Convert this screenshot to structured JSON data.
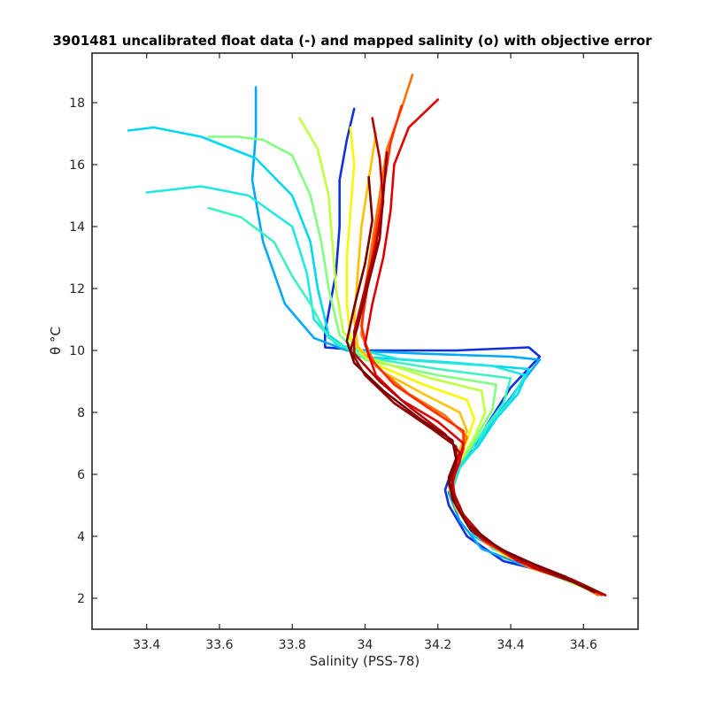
{
  "chart_data": {
    "type": "line",
    "title": "3901481 uncalibrated float data (-) and mapped salinity (o) with objective error",
    "xlabel": "Salinity (PSS-78)",
    "ylabel": "θ °C",
    "xlim": [
      33.25,
      34.75
    ],
    "ylim": [
      1.0,
      19.6
    ],
    "xticks": [
      33.4,
      33.6,
      33.8,
      34.0,
      34.2,
      34.4,
      34.6
    ],
    "xtick_labels": [
      "33.4",
      "33.6",
      "33.8",
      "34",
      "34.2",
      "34.4",
      "34.6"
    ],
    "yticks": [
      2,
      4,
      6,
      8,
      10,
      12,
      14,
      16,
      18
    ],
    "ytick_labels": [
      "2",
      "4",
      "6",
      "8",
      "10",
      "12",
      "14",
      "16",
      "18"
    ],
    "grid": false,
    "colormap": "jet (profile index: early = blue, late = dark red)",
    "colors": [
      "#0000b4",
      "#0050ff",
      "#00b4ff",
      "#30ffe0",
      "#90ff70",
      "#f0ff10",
      "#ffb000",
      "#ff4000",
      "#c00000",
      "#800000"
    ],
    "series": [
      {
        "color": "#1030e0",
        "points": [
          [
            33.97,
            17.8
          ],
          [
            33.95,
            16.8
          ],
          [
            33.93,
            15.5
          ],
          [
            33.93,
            14.0
          ],
          [
            33.92,
            12.5
          ],
          [
            33.89,
            10.6
          ],
          [
            33.89,
            10.1
          ],
          [
            34.0,
            10.0
          ],
          [
            34.25,
            10.0
          ],
          [
            34.45,
            10.1
          ],
          [
            34.48,
            9.8
          ],
          [
            34.4,
            8.8
          ],
          [
            34.33,
            7.5
          ],
          [
            34.3,
            6.8
          ],
          [
            34.24,
            6.2
          ],
          [
            34.22,
            5.5
          ],
          [
            34.23,
            5.0
          ],
          [
            34.28,
            4.0
          ],
          [
            34.38,
            3.2
          ],
          [
            34.55,
            2.7
          ],
          [
            34.62,
            2.3
          ]
        ]
      },
      {
        "color": "#00a8ff",
        "points": [
          [
            33.7,
            18.5
          ],
          [
            33.7,
            17.0
          ],
          [
            33.69,
            15.5
          ],
          [
            33.72,
            13.5
          ],
          [
            33.78,
            11.5
          ],
          [
            33.86,
            10.4
          ],
          [
            33.95,
            10.0
          ],
          [
            34.15,
            9.9
          ],
          [
            34.4,
            9.8
          ],
          [
            34.48,
            9.7
          ],
          [
            34.42,
            8.8
          ],
          [
            34.35,
            7.7
          ],
          [
            34.3,
            6.8
          ],
          [
            34.25,
            6.2
          ],
          [
            34.23,
            5.4
          ],
          [
            34.26,
            4.5
          ],
          [
            34.32,
            3.6
          ],
          [
            34.45,
            3.0
          ],
          [
            34.58,
            2.5
          ],
          [
            34.64,
            2.1
          ]
        ]
      },
      {
        "color": "#00d8f0",
        "points": [
          [
            33.35,
            17.1
          ],
          [
            33.42,
            17.2
          ],
          [
            33.55,
            16.9
          ],
          [
            33.7,
            16.2
          ],
          [
            33.8,
            15.0
          ],
          [
            33.85,
            13.5
          ],
          [
            33.87,
            12.0
          ],
          [
            33.9,
            10.5
          ],
          [
            33.98,
            9.8
          ],
          [
            34.25,
            9.6
          ],
          [
            34.45,
            9.4
          ],
          [
            34.42,
            8.6
          ],
          [
            34.36,
            7.8
          ],
          [
            34.31,
            6.9
          ],
          [
            34.26,
            6.3
          ],
          [
            34.24,
            5.6
          ],
          [
            34.26,
            4.8
          ],
          [
            34.3,
            4.0
          ],
          [
            34.42,
            3.2
          ],
          [
            34.56,
            2.6
          ],
          [
            34.63,
            2.2
          ]
        ]
      },
      {
        "color": "#20e8e0",
        "points": [
          [
            33.4,
            15.1
          ],
          [
            33.55,
            15.3
          ],
          [
            33.68,
            15.0
          ],
          [
            33.8,
            14.0
          ],
          [
            33.84,
            12.5
          ],
          [
            33.86,
            11.0
          ],
          [
            33.92,
            10.2
          ],
          [
            34.1,
            9.7
          ],
          [
            34.35,
            9.5
          ],
          [
            34.44,
            9.2
          ],
          [
            34.4,
            8.4
          ],
          [
            34.34,
            7.6
          ],
          [
            34.3,
            6.8
          ],
          [
            34.26,
            6.2
          ],
          [
            34.24,
            5.5
          ],
          [
            34.27,
            4.7
          ],
          [
            34.33,
            3.8
          ],
          [
            34.46,
            3.0
          ],
          [
            34.59,
            2.4
          ],
          [
            34.65,
            2.1
          ]
        ]
      },
      {
        "color": "#40f0c0",
        "points": [
          [
            33.57,
            14.6
          ],
          [
            33.66,
            14.3
          ],
          [
            33.75,
            13.5
          ],
          [
            33.8,
            12.4
          ],
          [
            33.85,
            11.5
          ],
          [
            33.9,
            10.4
          ],
          [
            33.99,
            9.8
          ],
          [
            34.2,
            9.4
          ],
          [
            34.4,
            9.1
          ],
          [
            34.38,
            8.3
          ],
          [
            34.33,
            7.5
          ],
          [
            34.29,
            6.8
          ],
          [
            34.25,
            6.2
          ],
          [
            34.24,
            5.5
          ],
          [
            34.27,
            4.6
          ],
          [
            34.35,
            3.6
          ],
          [
            34.5,
            2.9
          ],
          [
            34.6,
            2.4
          ],
          [
            34.64,
            2.1
          ]
        ]
      },
      {
        "color": "#80ff80",
        "points": [
          [
            33.57,
            16.9
          ],
          [
            33.65,
            16.9
          ],
          [
            33.72,
            16.8
          ],
          [
            33.8,
            16.3
          ],
          [
            33.85,
            15.0
          ],
          [
            33.88,
            13.5
          ],
          [
            33.9,
            12.0
          ],
          [
            33.93,
            10.5
          ],
          [
            34.0,
            9.7
          ],
          [
            34.2,
            9.2
          ],
          [
            34.36,
            8.9
          ],
          [
            34.35,
            8.1
          ],
          [
            34.31,
            7.3
          ],
          [
            34.28,
            6.7
          ],
          [
            34.24,
            6.1
          ],
          [
            34.24,
            5.4
          ],
          [
            34.28,
            4.5
          ],
          [
            34.36,
            3.6
          ],
          [
            34.5,
            2.9
          ],
          [
            34.61,
            2.4
          ],
          [
            34.66,
            2.1
          ]
        ]
      },
      {
        "color": "#c0ff40",
        "points": [
          [
            33.82,
            17.5
          ],
          [
            33.87,
            16.5
          ],
          [
            33.9,
            15.0
          ],
          [
            33.91,
            13.5
          ],
          [
            33.92,
            12.0
          ],
          [
            33.94,
            10.6
          ],
          [
            34.0,
            9.8
          ],
          [
            34.18,
            9.1
          ],
          [
            34.32,
            8.7
          ],
          [
            34.33,
            8.0
          ],
          [
            34.3,
            7.2
          ],
          [
            34.27,
            6.6
          ],
          [
            34.24,
            6.0
          ],
          [
            34.24,
            5.3
          ],
          [
            34.28,
            4.4
          ],
          [
            34.37,
            3.5
          ],
          [
            34.52,
            2.8
          ],
          [
            34.62,
            2.3
          ]
        ]
      },
      {
        "color": "#f8f800",
        "points": [
          [
            33.96,
            17.2
          ],
          [
            33.97,
            16.0
          ],
          [
            33.96,
            14.5
          ],
          [
            33.95,
            13.0
          ],
          [
            33.95,
            11.5
          ],
          [
            33.96,
            10.4
          ],
          [
            34.02,
            9.6
          ],
          [
            34.16,
            8.9
          ],
          [
            34.28,
            8.4
          ],
          [
            34.3,
            7.8
          ],
          [
            34.28,
            7.1
          ],
          [
            34.26,
            6.5
          ],
          [
            34.23,
            5.9
          ],
          [
            34.24,
            5.2
          ],
          [
            34.29,
            4.3
          ],
          [
            34.38,
            3.4
          ],
          [
            34.53,
            2.7
          ],
          [
            34.63,
            2.2
          ]
        ]
      },
      {
        "color": "#ffc000",
        "points": [
          [
            34.03,
            17.0
          ],
          [
            34.01,
            15.5
          ],
          [
            33.99,
            14.0
          ],
          [
            33.98,
            12.5
          ],
          [
            33.97,
            11.0
          ],
          [
            33.98,
            10.1
          ],
          [
            34.05,
            9.3
          ],
          [
            34.16,
            8.6
          ],
          [
            34.26,
            8.0
          ],
          [
            34.28,
            7.4
          ],
          [
            34.26,
            6.8
          ],
          [
            34.24,
            6.2
          ],
          [
            34.23,
            5.6
          ],
          [
            34.25,
            4.9
          ],
          [
            34.3,
            4.1
          ],
          [
            34.4,
            3.3
          ],
          [
            34.54,
            2.7
          ],
          [
            34.63,
            2.2
          ]
        ]
      },
      {
        "color": "#ff7000",
        "points": [
          [
            34.13,
            18.9
          ],
          [
            34.1,
            17.8
          ],
          [
            34.06,
            16.5
          ],
          [
            34.04,
            15.0
          ],
          [
            34.02,
            13.5
          ],
          [
            34.0,
            12.0
          ],
          [
            33.99,
            10.5
          ],
          [
            34.03,
            9.5
          ],
          [
            34.12,
            8.6
          ],
          [
            34.22,
            7.9
          ],
          [
            34.28,
            7.2
          ],
          [
            34.26,
            6.6
          ],
          [
            34.24,
            6.0
          ],
          [
            34.24,
            5.4
          ],
          [
            34.27,
            4.6
          ],
          [
            34.33,
            3.8
          ],
          [
            34.45,
            3.0
          ],
          [
            34.58,
            2.5
          ],
          [
            34.64,
            2.1
          ]
        ]
      },
      {
        "color": "#ff3000",
        "points": [
          [
            34.1,
            17.9
          ],
          [
            34.07,
            16.7
          ],
          [
            34.05,
            15.2
          ],
          [
            34.03,
            13.8
          ],
          [
            34.01,
            12.3
          ],
          [
            33.99,
            10.8
          ],
          [
            34.01,
            9.8
          ],
          [
            34.08,
            8.9
          ],
          [
            34.18,
            8.1
          ],
          [
            34.27,
            7.4
          ],
          [
            34.27,
            6.8
          ],
          [
            34.25,
            6.2
          ],
          [
            34.24,
            5.6
          ],
          [
            34.26,
            4.8
          ],
          [
            34.32,
            3.9
          ],
          [
            34.44,
            3.1
          ],
          [
            34.58,
            2.5
          ],
          [
            34.65,
            2.1
          ]
        ]
      },
      {
        "color": "#e00000",
        "points": [
          [
            34.2,
            18.1
          ],
          [
            34.12,
            17.2
          ],
          [
            34.08,
            16.0
          ],
          [
            34.07,
            14.5
          ],
          [
            34.05,
            13.0
          ],
          [
            34.02,
            11.5
          ],
          [
            34.0,
            10.2
          ],
          [
            34.03,
            9.2
          ],
          [
            34.1,
            8.4
          ],
          [
            34.2,
            7.7
          ],
          [
            34.27,
            7.0
          ],
          [
            34.26,
            6.4
          ],
          [
            34.24,
            5.8
          ],
          [
            34.25,
            5.0
          ],
          [
            34.3,
            4.1
          ],
          [
            34.42,
            3.2
          ],
          [
            34.57,
            2.6
          ],
          [
            34.66,
            2.1
          ]
        ]
      },
      {
        "color": "#b80000",
        "points": [
          [
            34.02,
            17.5
          ],
          [
            34.04,
            16.2
          ],
          [
            34.05,
            14.8
          ],
          [
            34.03,
            13.4
          ],
          [
            34.0,
            12.0
          ],
          [
            33.97,
            10.6
          ],
          [
            33.97,
            9.9
          ],
          [
            34.04,
            9.0
          ],
          [
            34.13,
            8.1
          ],
          [
            34.22,
            7.3
          ],
          [
            34.26,
            6.7
          ],
          [
            34.24,
            6.1
          ],
          [
            34.24,
            5.5
          ],
          [
            34.27,
            4.7
          ],
          [
            34.33,
            3.9
          ],
          [
            34.46,
            3.0
          ],
          [
            34.6,
            2.4
          ],
          [
            34.66,
            2.1
          ]
        ]
      },
      {
        "color": "#900000",
        "points": [
          [
            34.06,
            16.4
          ],
          [
            34.05,
            15.0
          ],
          [
            34.04,
            13.6
          ],
          [
            34.01,
            12.2
          ],
          [
            33.98,
            10.8
          ],
          [
            33.96,
            10.0
          ],
          [
            34.0,
            9.2
          ],
          [
            34.08,
            8.3
          ],
          [
            34.18,
            7.5
          ],
          [
            34.25,
            6.9
          ],
          [
            34.25,
            6.3
          ],
          [
            34.23,
            5.7
          ],
          [
            34.25,
            5.0
          ],
          [
            34.29,
            4.2
          ],
          [
            34.4,
            3.4
          ],
          [
            34.55,
            2.7
          ],
          [
            34.64,
            2.2
          ]
        ]
      },
      {
        "color": "#7a0000",
        "points": [
          [
            34.01,
            15.6
          ],
          [
            34.02,
            14.2
          ],
          [
            34.0,
            12.8
          ],
          [
            33.97,
            11.4
          ],
          [
            33.95,
            10.3
          ],
          [
            33.97,
            9.6
          ],
          [
            34.05,
            8.7
          ],
          [
            34.15,
            7.8
          ],
          [
            34.24,
            7.1
          ],
          [
            34.25,
            6.5
          ],
          [
            34.23,
            5.9
          ],
          [
            34.24,
            5.2
          ],
          [
            34.28,
            4.4
          ],
          [
            34.37,
            3.6
          ],
          [
            34.52,
            2.8
          ],
          [
            34.63,
            2.2
          ]
        ]
      }
    ]
  }
}
